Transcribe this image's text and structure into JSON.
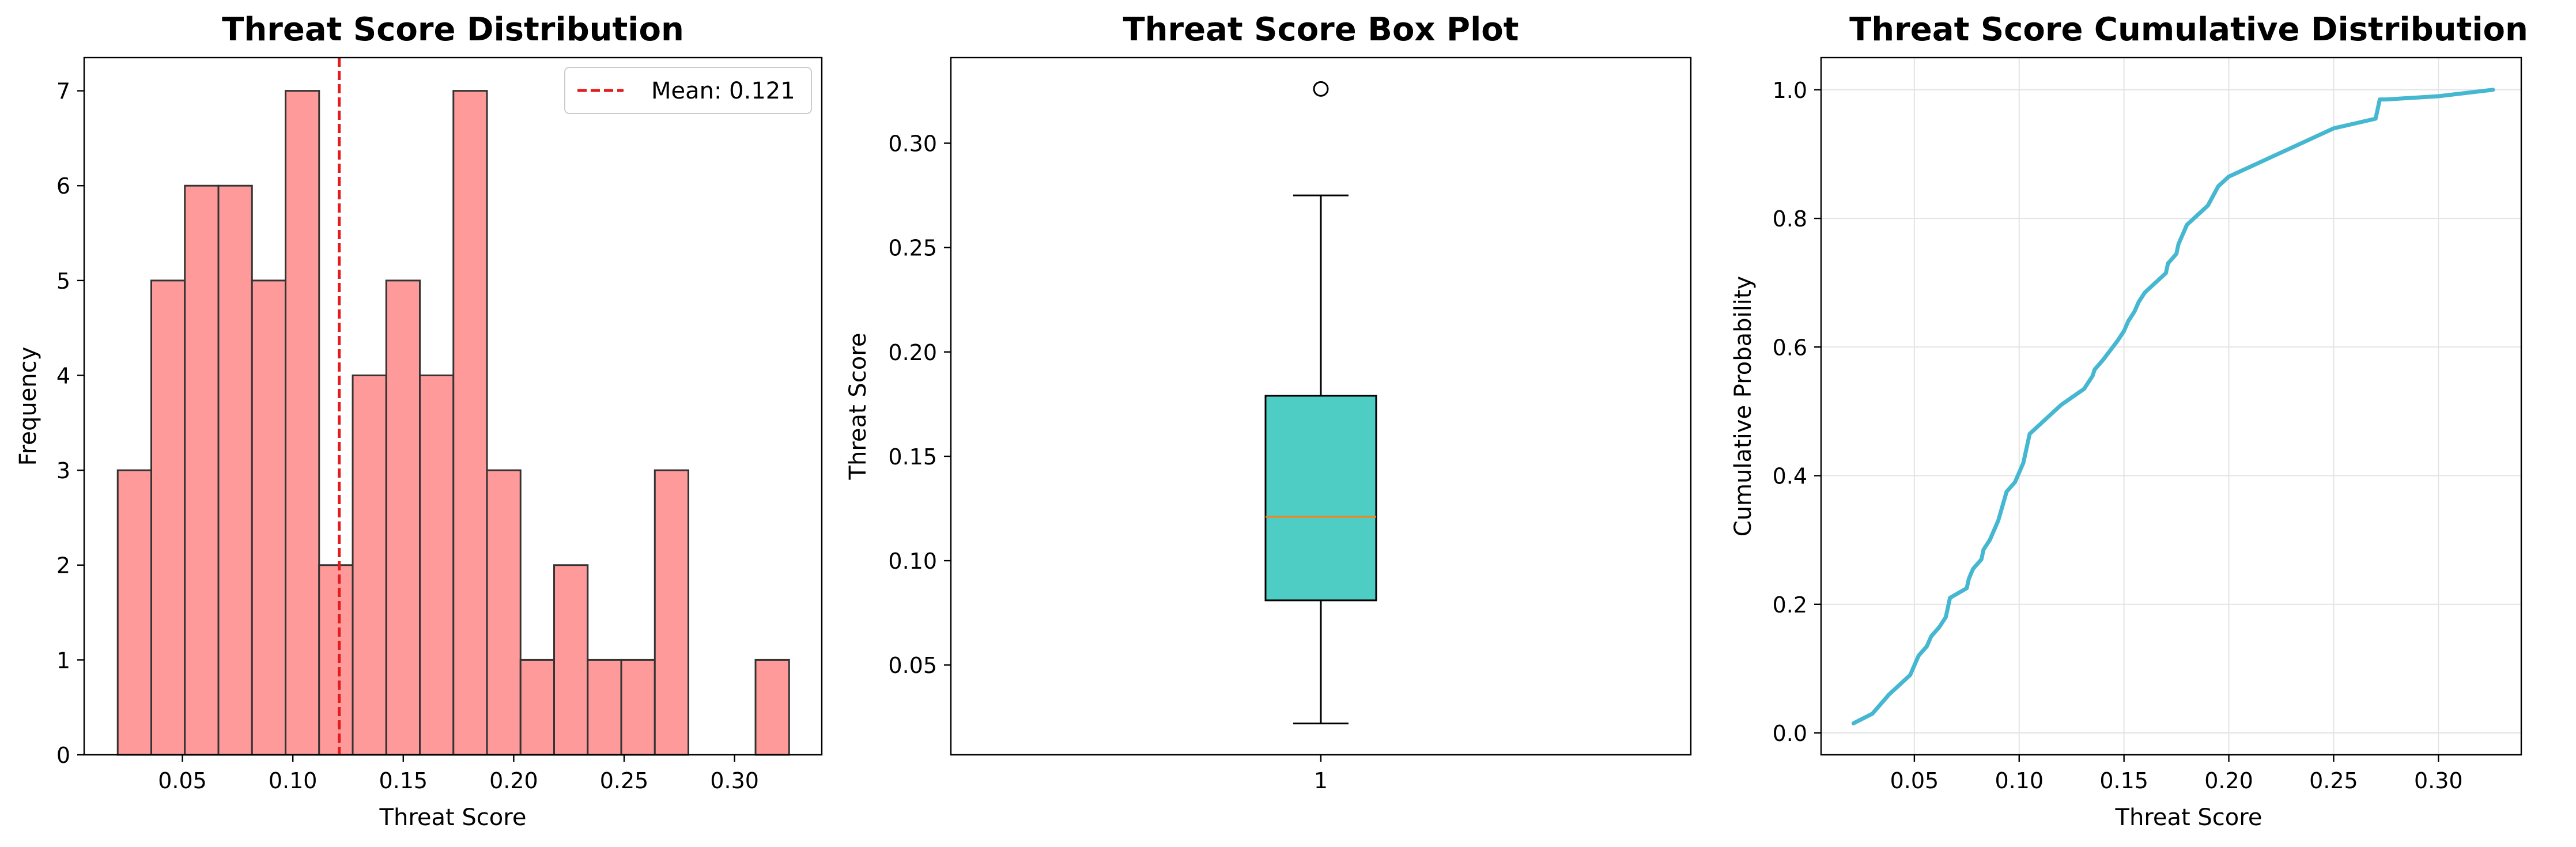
{
  "colors": {
    "hist_fill": "#ff9a9a",
    "hist_edge": "#333333",
    "mean_line": "#e41a1c",
    "box_fill": "#4ecdc4",
    "median": "#ff7f0e",
    "cdf_line": "#45b7d1",
    "grid": "#e3e3e3"
  },
  "chart_data": [
    {
      "type": "bar",
      "subtype": "histogram",
      "title": "Threat Score Distribution",
      "xlabel": "Threat Score",
      "ylabel": "Frequency",
      "xlim": [
        0.0055,
        0.3395
      ],
      "ylim": [
        0,
        7.35
      ],
      "xticks": [
        0.05,
        0.1,
        0.15,
        0.2,
        0.25,
        0.3
      ],
      "xtick_labels": [
        "0.05",
        "0.10",
        "0.15",
        "0.20",
        "0.25",
        "0.30"
      ],
      "yticks": [
        0,
        1,
        2,
        3,
        4,
        5,
        6,
        7
      ],
      "ytick_labels": [
        "0",
        "1",
        "2",
        "3",
        "4",
        "5",
        "6",
        "7"
      ],
      "bin_edges": [
        0.0207,
        0.0359,
        0.0511,
        0.0663,
        0.0815,
        0.0967,
        0.1119,
        0.1271,
        0.1423,
        0.1575,
        0.1727,
        0.1879,
        0.2031,
        0.2183,
        0.2335,
        0.2487,
        0.2639,
        0.2791,
        0.2943,
        0.3095,
        0.3247
      ],
      "values": [
        3,
        5,
        6,
        6,
        5,
        7,
        2,
        4,
        5,
        4,
        7,
        3,
        1,
        2,
        1,
        1,
        3,
        0,
        0,
        1
      ],
      "mean": 0.121,
      "legend": "Mean: 0.121",
      "legend_position": "top-right",
      "grid": false
    },
    {
      "type": "box",
      "title": "Threat Score Box Plot",
      "ylabel": "Threat Score",
      "xlabel": "",
      "categories": [
        "1"
      ],
      "box": {
        "whisker_low": 0.022,
        "q1": 0.081,
        "median": 0.121,
        "q3": 0.179,
        "whisker_high": 0.275,
        "outliers": [
          0.326
        ]
      },
      "ylim": [
        0.007,
        0.341
      ],
      "yticks": [
        0.05,
        0.1,
        0.15,
        0.2,
        0.25,
        0.3
      ],
      "ytick_labels": [
        "0.05",
        "0.10",
        "0.15",
        "0.20",
        "0.25",
        "0.30"
      ],
      "grid": false
    },
    {
      "type": "line",
      "title": "Threat Score Cumulative Distribution",
      "xlabel": "Threat Score",
      "ylabel": "Cumulative Probability",
      "xlim": [
        0.0055,
        0.3395
      ],
      "ylim": [
        -0.034,
        1.05
      ],
      "xticks": [
        0.05,
        0.1,
        0.15,
        0.2,
        0.25,
        0.3
      ],
      "xtick_labels": [
        "0.05",
        "0.10",
        "0.15",
        "0.20",
        "0.25",
        "0.30"
      ],
      "yticks": [
        0.0,
        0.2,
        0.4,
        0.6,
        0.8,
        1.0
      ],
      "ytick_labels": [
        "0.0",
        "0.2",
        "0.4",
        "0.6",
        "0.8",
        "1.0"
      ],
      "grid": true,
      "x": [
        0.021,
        0.03,
        0.038,
        0.043,
        0.048,
        0.05,
        0.052,
        0.056,
        0.058,
        0.062,
        0.065,
        0.066,
        0.067,
        0.075,
        0.076,
        0.078,
        0.082,
        0.083,
        0.086,
        0.088,
        0.09,
        0.094,
        0.098,
        0.1,
        0.102,
        0.103,
        0.105,
        0.11,
        0.12,
        0.131,
        0.135,
        0.136,
        0.14,
        0.147,
        0.15,
        0.152,
        0.155,
        0.157,
        0.16,
        0.165,
        0.17,
        0.171,
        0.175,
        0.176,
        0.178,
        0.18,
        0.185,
        0.19,
        0.195,
        0.2,
        0.21,
        0.22,
        0.23,
        0.25,
        0.27,
        0.272,
        0.275,
        0.3,
        0.326
      ],
      "y": [
        0.015,
        0.03,
        0.06,
        0.075,
        0.09,
        0.105,
        0.12,
        0.135,
        0.15,
        0.165,
        0.18,
        0.195,
        0.21,
        0.225,
        0.24,
        0.255,
        0.27,
        0.285,
        0.3,
        0.315,
        0.33,
        0.375,
        0.39,
        0.405,
        0.42,
        0.435,
        0.465,
        0.48,
        0.51,
        0.535,
        0.555,
        0.565,
        0.58,
        0.61,
        0.625,
        0.64,
        0.655,
        0.67,
        0.685,
        0.7,
        0.715,
        0.73,
        0.745,
        0.76,
        0.775,
        0.79,
        0.805,
        0.82,
        0.85,
        0.865,
        0.88,
        0.895,
        0.91,
        0.94,
        0.955,
        0.985,
        0.985,
        0.99,
        1.0
      ]
    }
  ]
}
